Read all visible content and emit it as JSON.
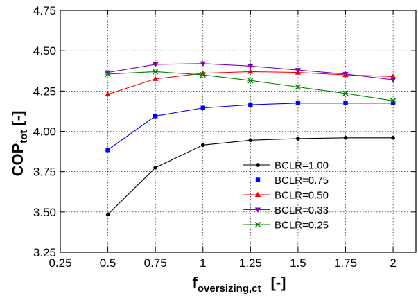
{
  "chart_data": {
    "type": "line",
    "title": "",
    "xlabel": {
      "main": "f",
      "sub": "oversizing,ct",
      "unit": "[-]"
    },
    "ylabel": {
      "main": "COP",
      "sub": "tot",
      "unit": "[-]"
    },
    "xlim": [
      0.25,
      2.12
    ],
    "ylim": [
      3.25,
      4.75
    ],
    "x_ticks": [
      0.25,
      0.5,
      0.75,
      1,
      1.25,
      1.5,
      1.75,
      2
    ],
    "x_tick_labels": [
      "0.25",
      "0.5",
      "0.75",
      "1",
      "1.25",
      "1.5",
      "1.75",
      "2"
    ],
    "y_ticks": [
      3.25,
      3.5,
      3.75,
      4.0,
      4.25,
      4.5,
      4.75
    ],
    "y_tick_labels": [
      "3.25",
      "3.50",
      "3.75",
      "4.00",
      "4.25",
      "4.50",
      "4.75"
    ],
    "grid": true,
    "legend_position": "bottom-right",
    "x": [
      0.5,
      0.75,
      1.0,
      1.25,
      1.5,
      1.75,
      2.0
    ],
    "series": [
      {
        "name": "BCLR=1.00",
        "color": "#000000",
        "marker": "circle",
        "values": [
          3.485,
          3.775,
          3.915,
          3.945,
          3.955,
          3.96,
          3.96
        ]
      },
      {
        "name": "BCLR=0.75",
        "color": "#0000ff",
        "marker": "square",
        "values": [
          3.885,
          4.095,
          4.145,
          4.165,
          4.175,
          4.175,
          4.175
        ]
      },
      {
        "name": "BCLR=0.50",
        "color": "#ff0000",
        "marker": "triangle-up",
        "values": [
          4.23,
          4.325,
          4.36,
          4.37,
          4.365,
          4.35,
          4.34
        ]
      },
      {
        "name": "BCLR=0.33",
        "color": "#7f00bf",
        "marker": "triangle-down",
        "values": [
          4.365,
          4.415,
          4.42,
          4.405,
          4.38,
          4.355,
          4.32
        ]
      },
      {
        "name": "BCLR=0.25",
        "color": "#008000",
        "marker": "x",
        "values": [
          4.355,
          4.37,
          4.35,
          4.315,
          4.275,
          4.235,
          4.19
        ]
      }
    ]
  }
}
